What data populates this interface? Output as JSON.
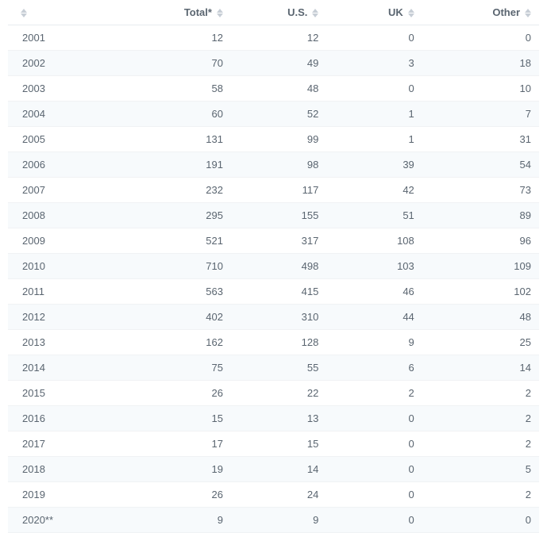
{
  "table": {
    "columns": [
      "",
      "Total*",
      "U.S.",
      "UK",
      "Other"
    ],
    "rows": [
      [
        "2001",
        "12",
        "12",
        "0",
        "0"
      ],
      [
        "2002",
        "70",
        "49",
        "3",
        "18"
      ],
      [
        "2003",
        "58",
        "48",
        "0",
        "10"
      ],
      [
        "2004",
        "60",
        "52",
        "1",
        "7"
      ],
      [
        "2005",
        "131",
        "99",
        "1",
        "31"
      ],
      [
        "2006",
        "191",
        "98",
        "39",
        "54"
      ],
      [
        "2007",
        "232",
        "117",
        "42",
        "73"
      ],
      [
        "2008",
        "295",
        "155",
        "51",
        "89"
      ],
      [
        "2009",
        "521",
        "317",
        "108",
        "96"
      ],
      [
        "2010",
        "710",
        "498",
        "103",
        "109"
      ],
      [
        "2011",
        "563",
        "415",
        "46",
        "102"
      ],
      [
        "2012",
        "402",
        "310",
        "44",
        "48"
      ],
      [
        "2013",
        "162",
        "128",
        "9",
        "25"
      ],
      [
        "2014",
        "75",
        "55",
        "6",
        "14"
      ],
      [
        "2015",
        "26",
        "22",
        "2",
        "2"
      ],
      [
        "2016",
        "15",
        "13",
        "0",
        "2"
      ],
      [
        "2017",
        "17",
        "15",
        "0",
        "2"
      ],
      [
        "2018",
        "19",
        "14",
        "0",
        "5"
      ],
      [
        "2019",
        "26",
        "24",
        "0",
        "2"
      ],
      [
        "2020**",
        "9",
        "9",
        "0",
        "0"
      ]
    ],
    "colors": {
      "text": "#5a6570",
      "row_even_bg": "#f7fafc",
      "row_odd_bg": "#ffffff",
      "border": "#e8ecef",
      "sort_icon": "#c7ced6"
    }
  }
}
